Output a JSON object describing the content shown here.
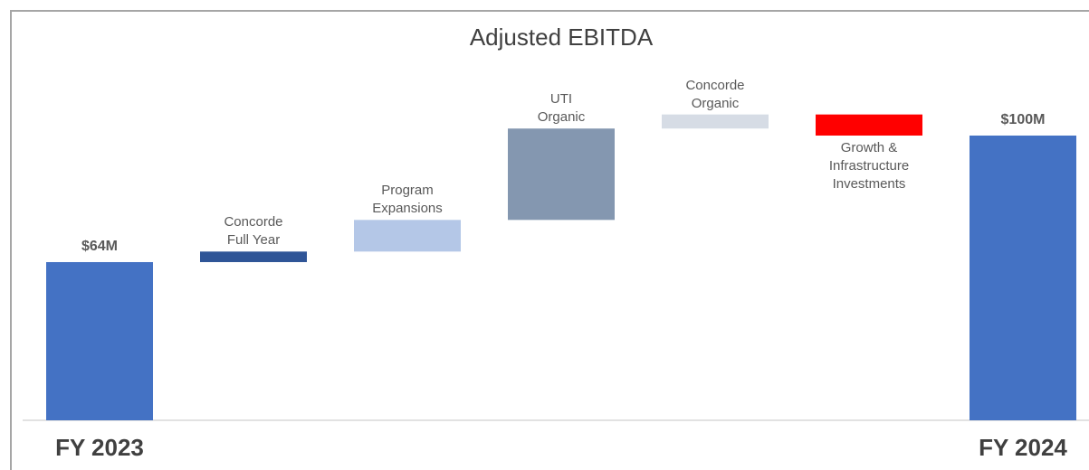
{
  "chart_data": {
    "type": "waterfall",
    "title": "Adjusted EBITDA",
    "categories": [
      "FY 2023",
      "Concorde\nFull Year",
      "Program\nExpansions",
      "UTI\nOrganic",
      "Concorde\nOrganic",
      "Growth &\nInfrastructure\nInvestments",
      "FY 2024"
    ],
    "values": [
      64,
      3,
      9,
      26,
      4,
      -6,
      100
    ],
    "value_labels": [
      "$64M",
      null,
      null,
      null,
      null,
      null,
      "$100M"
    ],
    "totals": [
      true,
      false,
      false,
      false,
      false,
      false,
      true
    ],
    "colors": [
      "#4472c4",
      "#2f5597",
      "#b4c7e7",
      "#8497b0",
      "#d6dce5",
      "#ff0000",
      "#4472c4"
    ],
    "ylim": [
      19,
      125
    ]
  }
}
